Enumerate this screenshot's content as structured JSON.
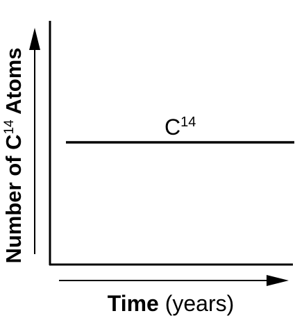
{
  "diagram": {
    "line_label": {
      "text": "C",
      "superscript": "14"
    },
    "x_axis_label": {
      "bold": "Time",
      "rest": " (years)"
    },
    "y_axis_label": {
      "text": "Number of C",
      "superscript": "14",
      "suffix": " Atoms"
    }
  }
}
